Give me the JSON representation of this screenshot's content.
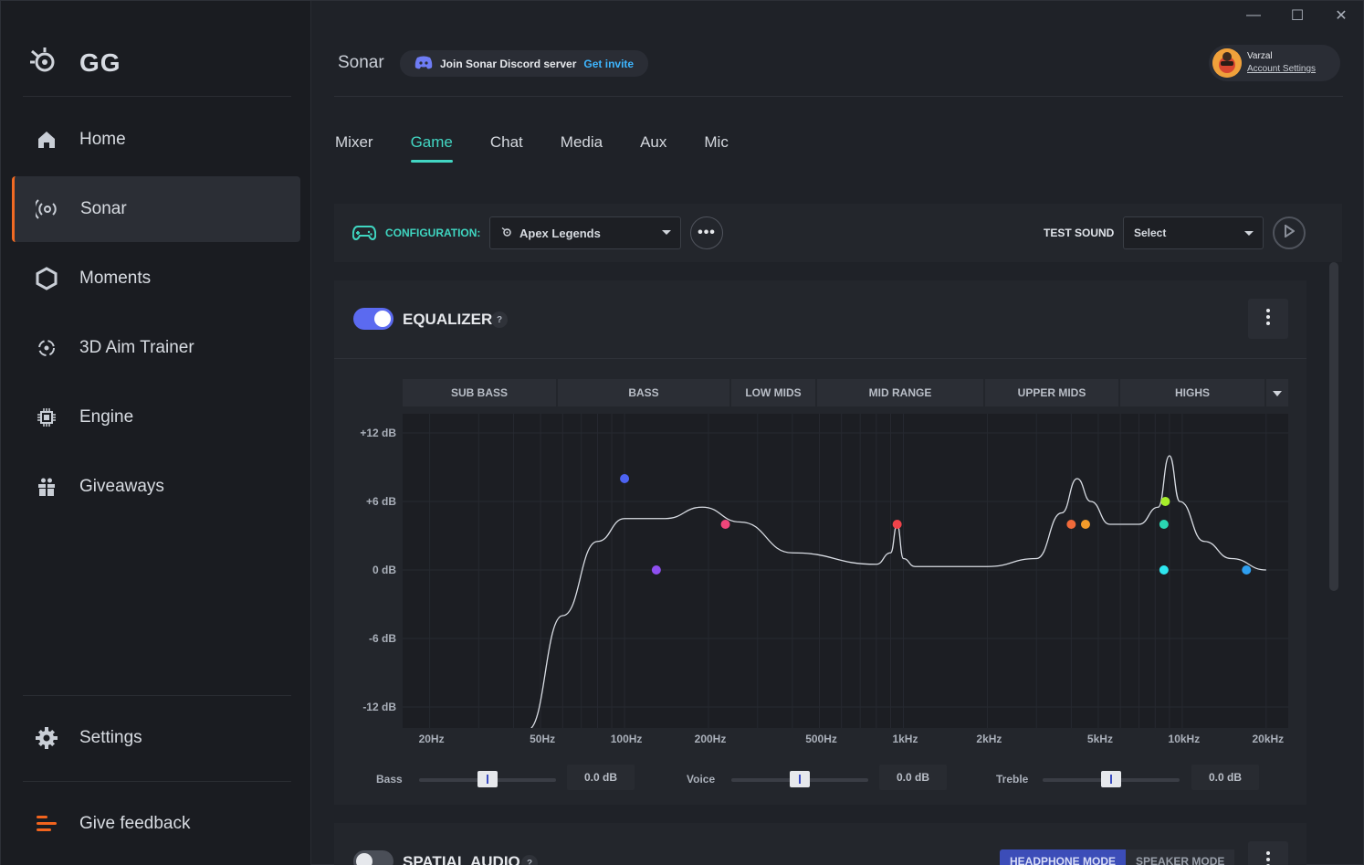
{
  "window": {
    "minimize": "—",
    "maximize": "☐",
    "close": "✕"
  },
  "brand": {
    "name": "GG"
  },
  "nav": {
    "items": [
      {
        "label": "Home"
      },
      {
        "label": "Sonar"
      },
      {
        "label": "Moments"
      },
      {
        "label": "3D Aim Trainer"
      },
      {
        "label": "Engine"
      },
      {
        "label": "Giveaways"
      }
    ],
    "settings": "Settings",
    "feedback": "Give feedback"
  },
  "header": {
    "title": "Sonar",
    "discord_text": "Join Sonar Discord server",
    "discord_link": "Get invite",
    "user_name": "Varzal",
    "account_link": "Account Settings"
  },
  "tabs": [
    "Mixer",
    "Game",
    "Chat",
    "Media",
    "Aux",
    "Mic"
  ],
  "active_tab": "Game",
  "config": {
    "label": "CONFIGURATION:",
    "selected": "Apex Legends",
    "more": "•••",
    "test_sound_label": "TEST SOUND",
    "test_sound_value": "Select"
  },
  "equalizer": {
    "title": "EQUALIZER",
    "help": "?",
    "enabled": true,
    "bands": [
      "SUB BASS",
      "BASS",
      "LOW MIDS",
      "MID RANGE",
      "UPPER MIDS",
      "HIGHS"
    ],
    "y_labels": [
      "+12 dB",
      "+6 dB",
      "0 dB",
      "-6 dB",
      "-12 dB"
    ],
    "x_labels": [
      "20Hz",
      "50Hz",
      "100Hz",
      "200Hz",
      "500Hz",
      "1kHz",
      "2kHz",
      "5kHz",
      "10kHz",
      "20kHz"
    ],
    "sliders": [
      {
        "label": "Bass",
        "value": "0.0 dB"
      },
      {
        "label": "Voice",
        "value": "0.0 dB"
      },
      {
        "label": "Treble",
        "value": "0.0 dB"
      }
    ]
  },
  "eq_chart": {
    "type": "line",
    "x_scale": "log",
    "xlim_hz": [
      16,
      24000
    ],
    "ylim_db": [
      -12,
      12
    ],
    "curve": [
      [
        45,
        -14
      ],
      [
        60,
        -4
      ],
      [
        80,
        2.5
      ],
      [
        100,
        4.5
      ],
      [
        140,
        4.5
      ],
      [
        190,
        5.5
      ],
      [
        260,
        4.2
      ],
      [
        400,
        1.5
      ],
      [
        800,
        0.5
      ],
      [
        900,
        1.5
      ],
      [
        950,
        4
      ],
      [
        1000,
        1
      ],
      [
        1100,
        0.3
      ],
      [
        2000,
        0.3
      ],
      [
        3000,
        1
      ],
      [
        3700,
        5
      ],
      [
        4200,
        8
      ],
      [
        4700,
        6
      ],
      [
        5500,
        4
      ],
      [
        7000,
        4
      ],
      [
        8200,
        5.5
      ],
      [
        9000,
        10
      ],
      [
        9800,
        6
      ],
      [
        12000,
        2.5
      ],
      [
        15000,
        1
      ],
      [
        20000,
        0
      ]
    ],
    "points": [
      {
        "hz": 100,
        "db": 8,
        "color": "#4d63f2"
      },
      {
        "hz": 130,
        "db": 0,
        "color": "#8e4ff0"
      },
      {
        "hz": 230,
        "db": 4,
        "color": "#f0467a"
      },
      {
        "hz": 950,
        "db": 4,
        "color": "#f0434a"
      },
      {
        "hz": 4000,
        "db": 4,
        "color": "#f06a3a"
      },
      {
        "hz": 4500,
        "db": 4,
        "color": "#f29b2a"
      },
      {
        "hz": 8700,
        "db": 6,
        "color": "#a6ee2a"
      },
      {
        "hz": 8600,
        "db": 4,
        "color": "#2ad6b2"
      },
      {
        "hz": 8600,
        "db": 0,
        "color": "#2ee6ef"
      },
      {
        "hz": 17000,
        "db": 0,
        "color": "#2e9ff0"
      }
    ]
  },
  "spatial": {
    "title": "SPATIAL AUDIO",
    "help": "?",
    "mode_on": "HEADPHONE MODE",
    "mode_off": "SPEAKER MODE"
  }
}
